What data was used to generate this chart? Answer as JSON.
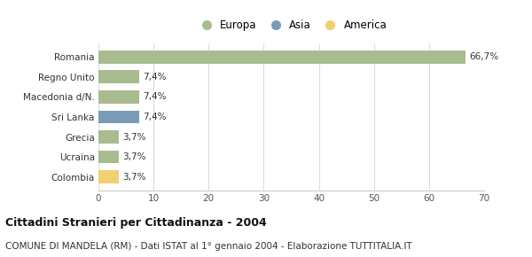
{
  "categories": [
    "Romania",
    "Regno Unito",
    "Macedonia d/N.",
    "Sri Lanka",
    "Grecia",
    "Ucraina",
    "Colombia"
  ],
  "values": [
    66.7,
    7.4,
    7.4,
    7.4,
    3.7,
    3.7,
    3.7
  ],
  "bar_colors": [
    "#a8bc8f",
    "#a8bc8f",
    "#a8bc8f",
    "#7a9bb5",
    "#a8bc8f",
    "#a8bc8f",
    "#f0d070"
  ],
  "labels": [
    "66,7%",
    "7,4%",
    "7,4%",
    "7,4%",
    "3,7%",
    "3,7%",
    "3,7%"
  ],
  "legend": [
    {
      "label": "Europa",
      "color": "#a8bc8f"
    },
    {
      "label": "Asia",
      "color": "#7a9bb5"
    },
    {
      "label": "America",
      "color": "#f0d070"
    }
  ],
  "xlim": [
    0,
    70
  ],
  "xticks": [
    0,
    10,
    20,
    30,
    40,
    50,
    60,
    70
  ],
  "title": "Cittadini Stranieri per Cittadinanza - 2004",
  "subtitle": "COMUNE DI MANDELA (RM) - Dati ISTAT al 1° gennaio 2004 - Elaborazione TUTTITALIA.IT",
  "title_fontsize": 9,
  "subtitle_fontsize": 7.5,
  "background_color": "#ffffff",
  "grid_color": "#dddddd"
}
